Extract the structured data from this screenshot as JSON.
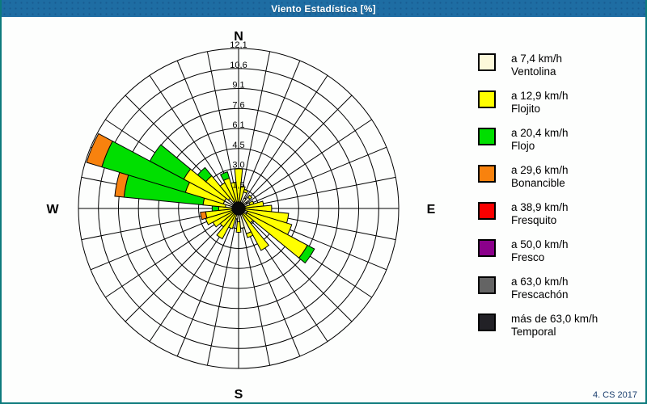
{
  "window": {
    "title": "Viento Estadística [%]"
  },
  "footer": {
    "credit": "4. CS 2017"
  },
  "chart_data": {
    "type": "bar",
    "subtype": "polar-stacked-wind-rose",
    "title": "Viento Estadística [%]",
    "units": "%",
    "rmax": 12.1,
    "rings": 8,
    "ring_values": [
      1.5,
      3.0,
      4.5,
      6.1,
      7.6,
      9.1,
      10.6,
      12.1
    ],
    "ring_labels": [
      "1,5",
      "3,0",
      "4,5",
      "6,1",
      "7,6",
      "9,1",
      "10,6",
      "12,1"
    ],
    "sector_width_deg": 11.25,
    "grid": true,
    "legend_position": "right",
    "compass": {
      "north": "N",
      "east": "E",
      "south": "S",
      "west": "W"
    },
    "categories": [
      "N",
      "NbE",
      "NNE",
      "NEbN",
      "NE",
      "NEbE",
      "ENE",
      "EbN",
      "E",
      "EbS",
      "ESE",
      "SEbE",
      "SE",
      "SEbS",
      "SSE",
      "SbE",
      "S",
      "SbW",
      "SSW",
      "SWbS",
      "SW",
      "SWbW",
      "WSW",
      "WbS",
      "W",
      "WbN",
      "WNW",
      "NWbW",
      "NW",
      "NWbN",
      "NNW",
      "NbW"
    ],
    "series": [
      {
        "name": "Ventolina",
        "speed": "a 7,4 km/h",
        "color": "#FCF8DA",
        "values": [
          0.5,
          0.4,
          1.3,
          0.9,
          1.1,
          0.7,
          0.9,
          0.5,
          0.5,
          0.5,
          0.7,
          0.7,
          0.4,
          0.5,
          2.0,
          1.5,
          1.0,
          0.8,
          0.5,
          0.5,
          0.5,
          0.5,
          0.5,
          0.5,
          0.5,
          1.0,
          1.2,
          1.2,
          1.0,
          0.6,
          0.5,
          0.5
        ]
      },
      {
        "name": "Flojito",
        "speed": "a 12,9 km/h",
        "color": "#FFFF00",
        "values": [
          2.5,
          1.3,
          0.2,
          0.0,
          0.2,
          0.0,
          0.3,
          1.4,
          2.0,
          3.3,
          3.5,
          5.2,
          1.0,
          3.1,
          0.3,
          0.0,
          0.8,
          0.0,
          1.1,
          2.1,
          1.3,
          1.7,
          2.1,
          2.0,
          1.0,
          1.7,
          3.0,
          3.5,
          2.2,
          1.6,
          1.9,
          1.5
        ]
      },
      {
        "name": "Flojo",
        "speed": "a 20,4 km/h",
        "color": "#00DF00",
        "values": [
          0,
          0,
          0,
          0,
          0,
          0,
          0,
          0,
          0,
          0,
          0,
          0.6,
          0,
          0,
          0,
          0,
          0,
          0,
          0,
          0,
          0,
          0,
          0,
          0,
          0.5,
          6.0,
          6.6,
          2.9,
          0.8,
          0,
          0.5,
          0
        ]
      },
      {
        "name": "Bonancible",
        "speed": "a 29,6 km/h",
        "color": "#F8820E",
        "values": [
          0,
          0,
          0,
          0,
          0,
          0,
          0,
          0,
          0,
          0,
          0,
          0,
          0,
          0,
          0,
          0,
          0,
          0,
          0,
          0,
          0,
          0,
          0,
          0.4,
          0,
          0.7,
          1.2,
          0,
          0,
          0,
          0,
          0
        ]
      },
      {
        "name": "Fresquito",
        "speed": "a 38,9 km/h",
        "color": "#FA0000",
        "values": [
          0,
          0,
          0,
          0,
          0,
          0,
          0,
          0,
          0,
          0,
          0,
          0,
          0,
          0,
          0,
          0,
          0,
          0,
          0,
          0,
          0,
          0,
          0,
          0,
          0,
          0,
          0,
          0,
          0,
          0,
          0,
          0
        ]
      },
      {
        "name": "Fresco",
        "speed": "a 50,0 km/h",
        "color": "#8B008B",
        "values": [
          0,
          0,
          0,
          0,
          0,
          0,
          0,
          0,
          0,
          0,
          0,
          0,
          0,
          0,
          0,
          0,
          0,
          0,
          0,
          0,
          0,
          0,
          0,
          0,
          0,
          0,
          0,
          0,
          0,
          0,
          0,
          0
        ]
      },
      {
        "name": "Frescachón",
        "speed": "a 63,0 km/h",
        "color": "#646464",
        "values": [
          0,
          0,
          0,
          0,
          0,
          0,
          0,
          0,
          0,
          0,
          0,
          0,
          0,
          0,
          0,
          0,
          0,
          0,
          0,
          0,
          0,
          0,
          0,
          0,
          0,
          0,
          0,
          0,
          0,
          0,
          0,
          0
        ]
      },
      {
        "name": "Temporal",
        "speed": "más de 63,0 km/h",
        "color": "#222126",
        "values": [
          0,
          0,
          0,
          0,
          0,
          0,
          0,
          0,
          0,
          0,
          0,
          0,
          0,
          0,
          0,
          0,
          0,
          0,
          0,
          0,
          0,
          0,
          0,
          0,
          0,
          0,
          0,
          0,
          0,
          0,
          0,
          0
        ]
      }
    ],
    "legend": [
      {
        "speed": "a 7,4 km/h",
        "name": "Ventolina",
        "color": "#FCF8DA"
      },
      {
        "speed": "a 12,9 km/h",
        "name": "Flojito",
        "color": "#FFFF00"
      },
      {
        "speed": "a 20,4 km/h",
        "name": "Flojo",
        "color": "#00DF00"
      },
      {
        "speed": "a 29,6 km/h",
        "name": "Bonancible",
        "color": "#F8820E"
      },
      {
        "speed": "a 38,9 km/h",
        "name": "Fresquito",
        "color": "#FA0000"
      },
      {
        "speed": "a 50,0 km/h",
        "name": "Fresco",
        "color": "#8B008B"
      },
      {
        "speed": "a 63,0 km/h",
        "name": "Frescachón",
        "color": "#646464"
      },
      {
        "speed": "más de 63,0 km/h",
        "name": "Temporal",
        "color": "#222126"
      }
    ]
  }
}
